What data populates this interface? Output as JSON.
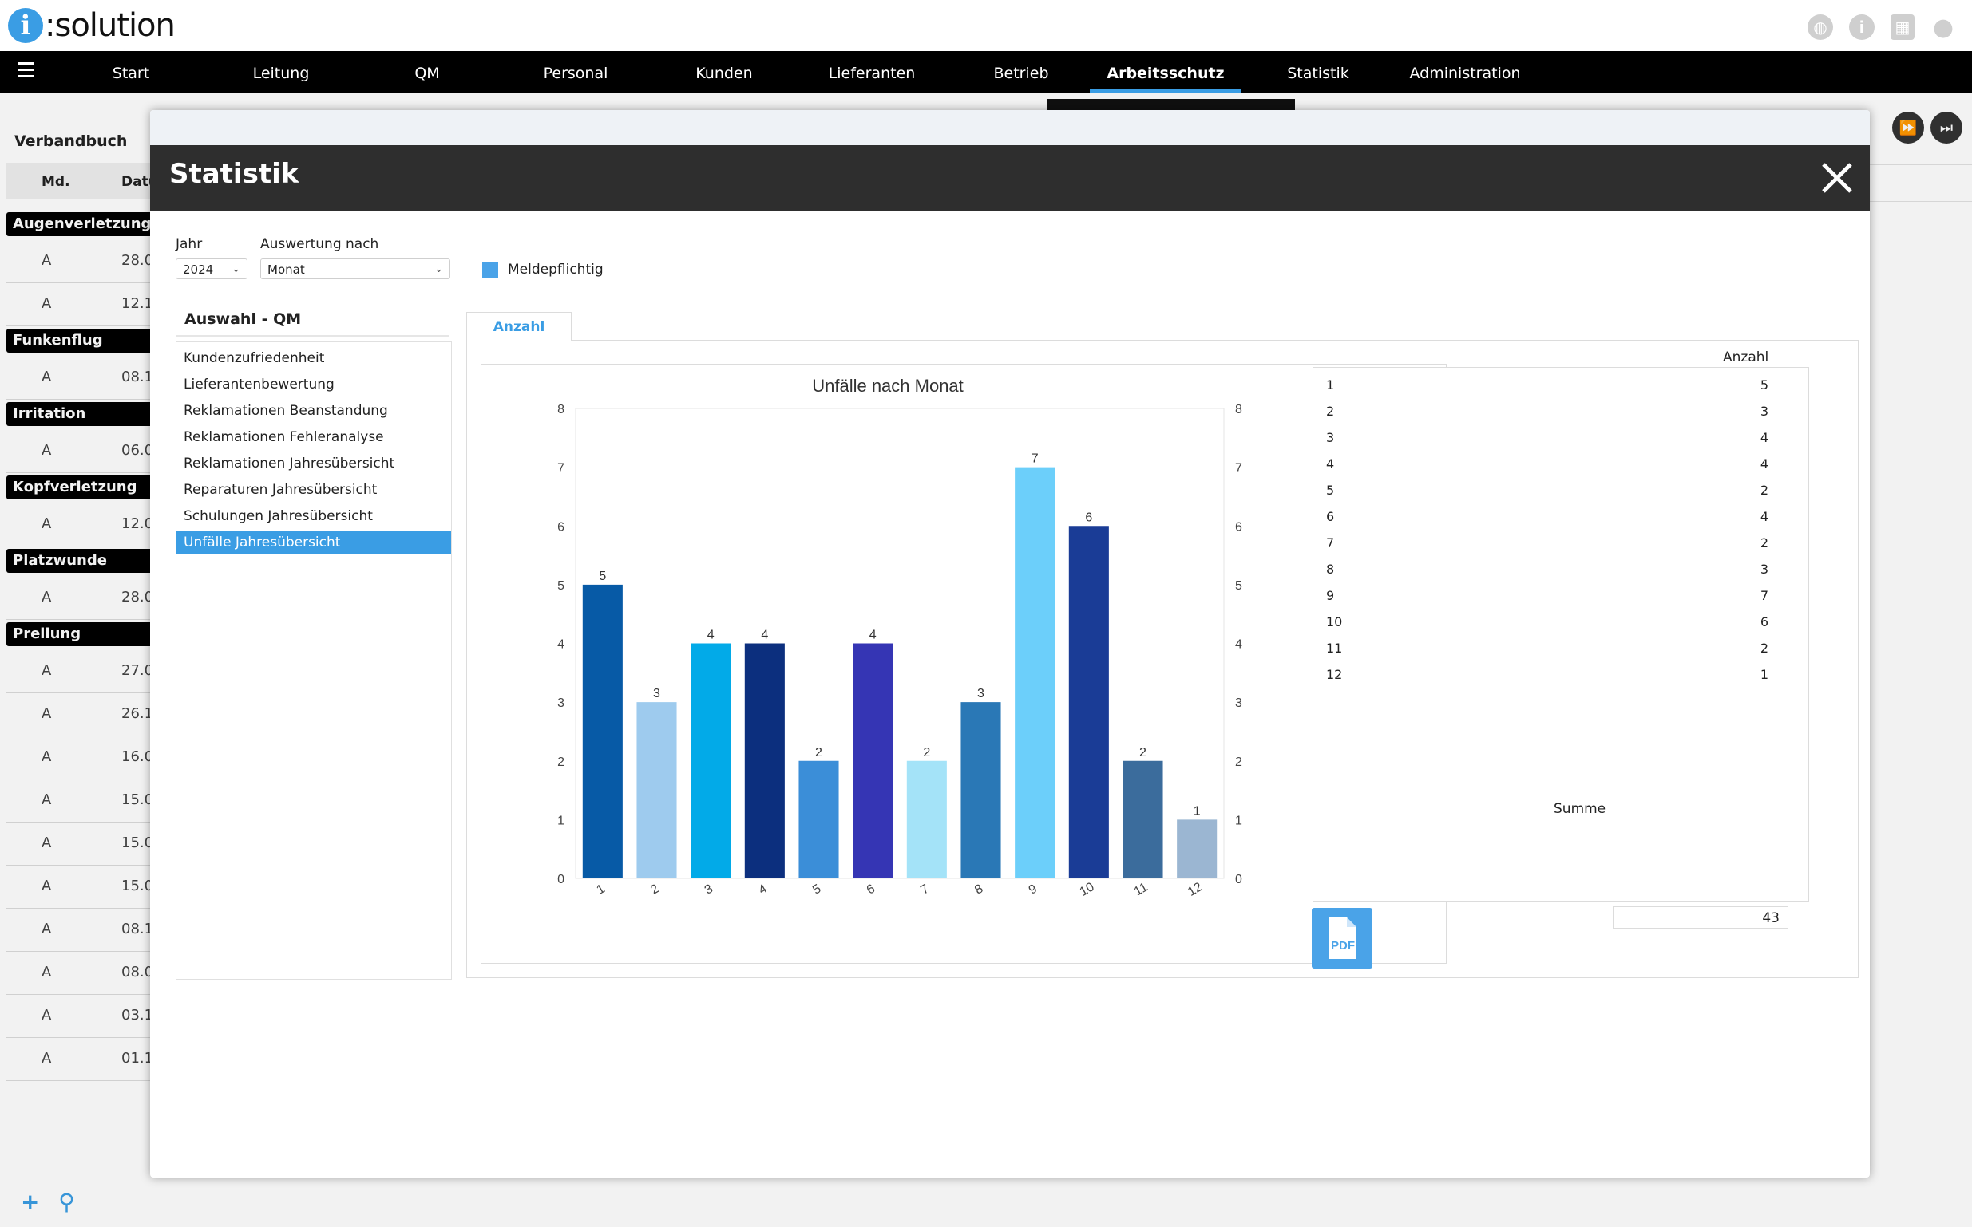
{
  "app": {
    "logo_i": "i",
    "logo_text": ":solution"
  },
  "nav": {
    "items": [
      "Start",
      "Leitung",
      "QM",
      "Personal",
      "Kunden",
      "Lieferanten",
      "Betrieb",
      "Arbeitsschutz",
      "Statistik",
      "Administration"
    ],
    "active": "Arbeitsschutz"
  },
  "background_page": {
    "title": "Verbandbuch",
    "columns": [
      "Md.",
      "Datu"
    ],
    "groups": [
      {
        "label": "Augenverletzung",
        "rows": [
          {
            "md": "A",
            "date": "28.0"
          },
          {
            "md": "A",
            "date": "12.1"
          }
        ]
      },
      {
        "label": "Funkenflug",
        "rows": [
          {
            "md": "A",
            "date": "08.1"
          }
        ]
      },
      {
        "label": "Irritation",
        "rows": [
          {
            "md": "A",
            "date": "06.0"
          }
        ]
      },
      {
        "label": "Kopfverletzung",
        "rows": [
          {
            "md": "A",
            "date": "12.0"
          }
        ]
      },
      {
        "label": "Platzwunde",
        "rows": [
          {
            "md": "A",
            "date": "28.0"
          }
        ]
      },
      {
        "label": "Prellung",
        "rows": [
          {
            "md": "A",
            "date": "27.0"
          },
          {
            "md": "A",
            "date": "26.1"
          },
          {
            "md": "A",
            "date": "16.0"
          },
          {
            "md": "A",
            "date": "15.0"
          },
          {
            "md": "A",
            "date": "15.0"
          },
          {
            "md": "A",
            "date": "15.0"
          },
          {
            "md": "A",
            "date": "08.1"
          },
          {
            "md": "A",
            "date": "08.0"
          },
          {
            "md": "A",
            "date": "03.1"
          },
          {
            "md": "A",
            "date": "01.1"
          }
        ]
      }
    ]
  },
  "modal": {
    "title": "Statistik",
    "jahr_label": "Jahr",
    "jahr_value": "2024",
    "auswertung_label": "Auswertung nach",
    "auswertung_value": "Monat",
    "legend_label": "Meldepflichtig",
    "legend_color": "#4aa3e8",
    "qm_title": "Auswahl - QM",
    "qm_items": [
      "Kundenzufriedenheit",
      "Lieferantenbewertung",
      "Reklamationen Beanstandung",
      "Reklamationen Fehleranalyse",
      "Reklamationen Jahresübersicht",
      "Reparaturen Jahresübersicht",
      "Schulungen Jahresübersicht",
      "Unfälle Jahresübersicht"
    ],
    "qm_selected": "Unfälle Jahresübersicht",
    "tab_label": "Anzahl",
    "table_header": "Anzahl",
    "summe_label": "Summe",
    "summe_value": "43",
    "pdf_label": "PDF"
  },
  "chart_data": {
    "type": "bar",
    "title": "Unfälle nach Monat",
    "categories": [
      "1",
      "2",
      "3",
      "4",
      "5",
      "6",
      "7",
      "8",
      "9",
      "10",
      "11",
      "12"
    ],
    "values": [
      5,
      3,
      4,
      4,
      2,
      4,
      2,
      3,
      7,
      6,
      2,
      1
    ],
    "colors": [
      "#075aa6",
      "#9ecbee",
      "#02aae8",
      "#0c2f7e",
      "#3b8ed8",
      "#3535b4",
      "#a4e3f8",
      "#2a78b6",
      "#6ccffa",
      "#1a3c96",
      "#3b6c9c",
      "#9bb6d2"
    ],
    "ylim": [
      0,
      8
    ],
    "yticks": [
      "0",
      "1",
      "2",
      "3",
      "4",
      "5",
      "6",
      "7",
      "8"
    ],
    "grid": false,
    "legend": "none"
  }
}
